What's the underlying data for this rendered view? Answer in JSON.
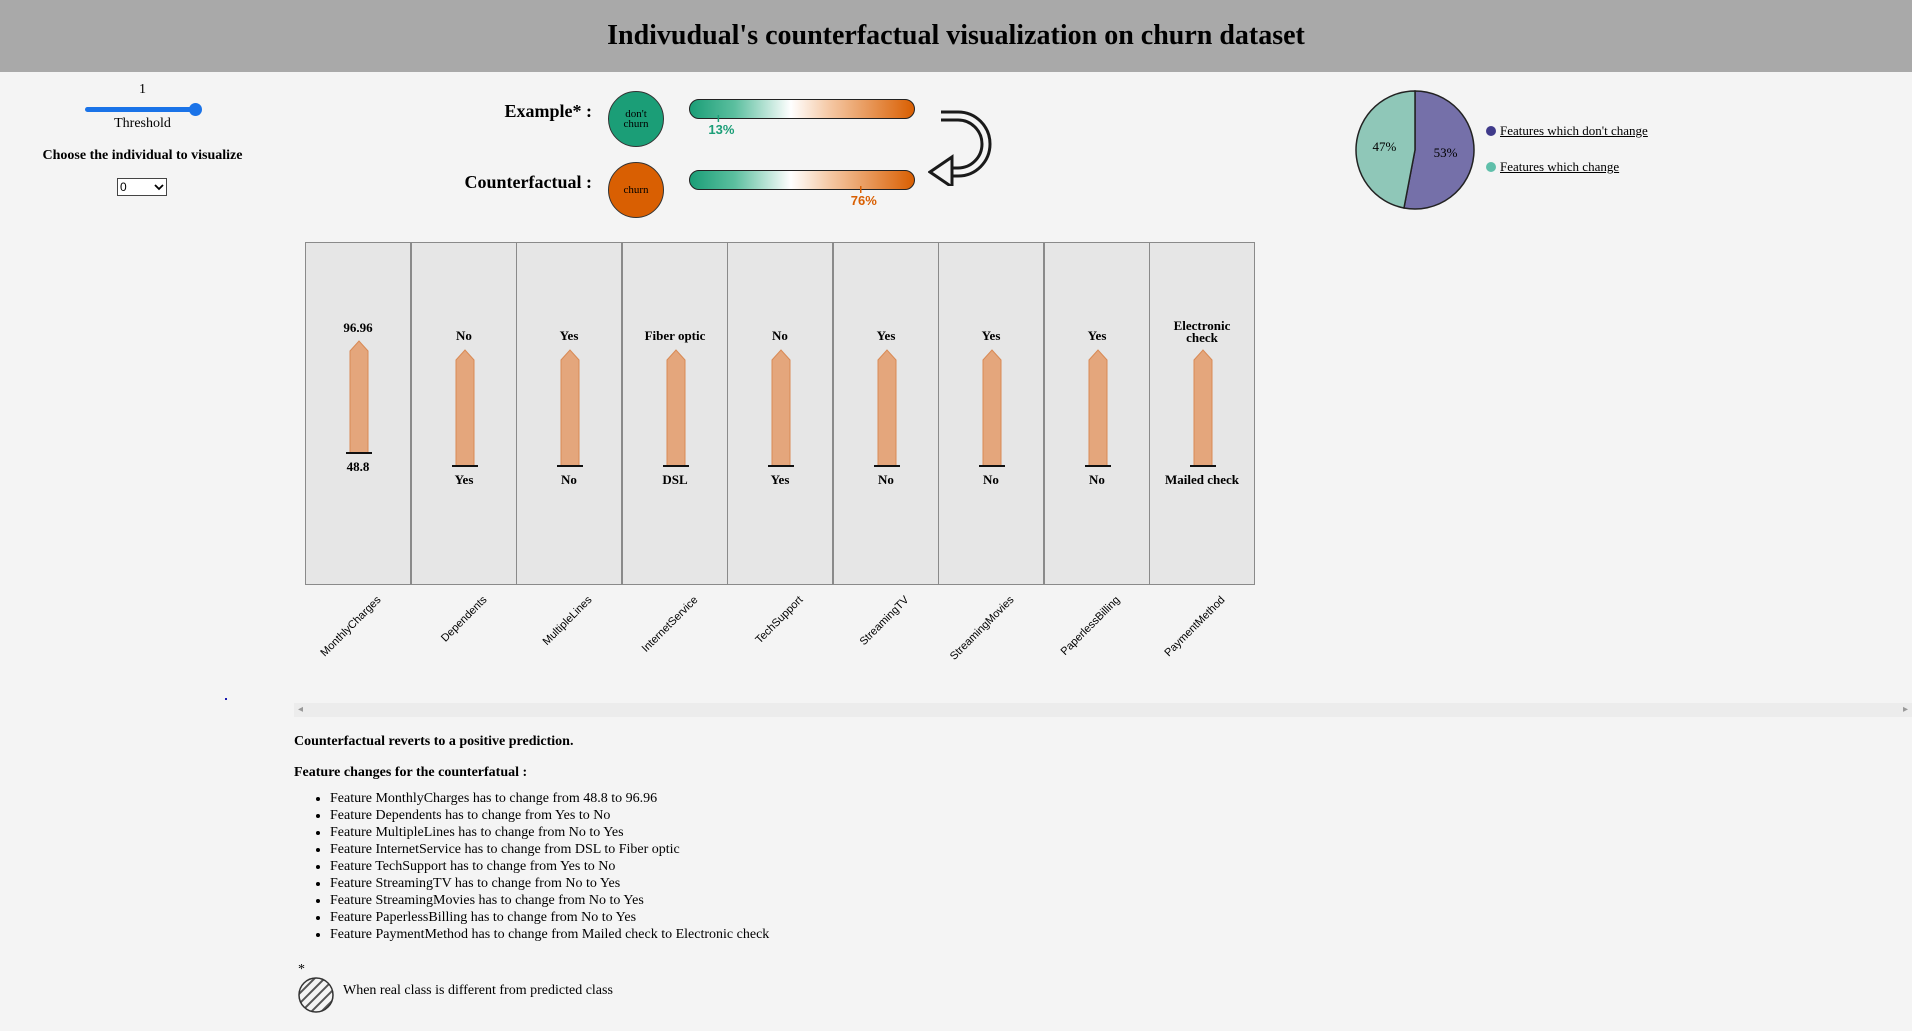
{
  "header": {
    "title": "Indivudual's counterfactual visualization on churn dataset"
  },
  "controls": {
    "threshold_value": "1",
    "threshold_label": "Threshold",
    "choose_label": "Choose the individual to visualize",
    "selected_individual": "0"
  },
  "example": {
    "label": "Example* :",
    "prediction_line1": "don't",
    "prediction_line2": "churn",
    "probability": 0.13,
    "probability_label": "13%",
    "color": "#1b9e77"
  },
  "counterfactual": {
    "label": "Counterfactual :",
    "prediction": "churn",
    "probability": 0.76,
    "probability_label": "76%",
    "color": "#d95f02"
  },
  "pie": {
    "slices": [
      {
        "label": "Features which don't change",
        "value": 53,
        "text": "53%",
        "color": "#7570a9"
      },
      {
        "label": "Features which change",
        "value": 47,
        "text": "47%",
        "color": "#8fc7b8"
      }
    ]
  },
  "features": [
    {
      "name": "MonthlyCharges",
      "from": "48.8",
      "to": "96.96"
    },
    {
      "name": "Dependents",
      "from": "Yes",
      "to": "No"
    },
    {
      "name": "MultipleLines",
      "from": "No",
      "to": "Yes"
    },
    {
      "name": "InternetService",
      "from": "DSL",
      "to": "Fiber optic"
    },
    {
      "name": "TechSupport",
      "from": "Yes",
      "to": "No"
    },
    {
      "name": "StreamingTV",
      "from": "No",
      "to": "Yes"
    },
    {
      "name": "StreamingMovies",
      "from": "No",
      "to": "Yes"
    },
    {
      "name": "PaperlessBilling",
      "from": "No",
      "to": "Yes"
    },
    {
      "name": "PaymentMethod",
      "from": "Mailed check",
      "to_line1": "Electronic",
      "to_line2": "check"
    }
  ],
  "summary": "Counterfactual reverts to a positive prediction.",
  "changes_title": "Feature changes for the counterfatual :",
  "changes": [
    "Feature MonthlyCharges has to change from 48.8 to 96.96",
    "Feature Dependents has to change from Yes to No",
    "Feature MultipleLines has to change from No to Yes",
    "Feature InternetService has to change from DSL to Fiber optic",
    "Feature TechSupport has to change from Yes to No",
    "Feature StreamingTV has to change from No to Yes",
    "Feature StreamingMovies has to change from No to Yes",
    "Feature PaperlessBilling has to change from No to Yes",
    "Feature PaymentMethod has to change from Mailed check to Electronic check"
  ],
  "footnote": {
    "star": "*",
    "text": "When real class is different from predicted class"
  }
}
